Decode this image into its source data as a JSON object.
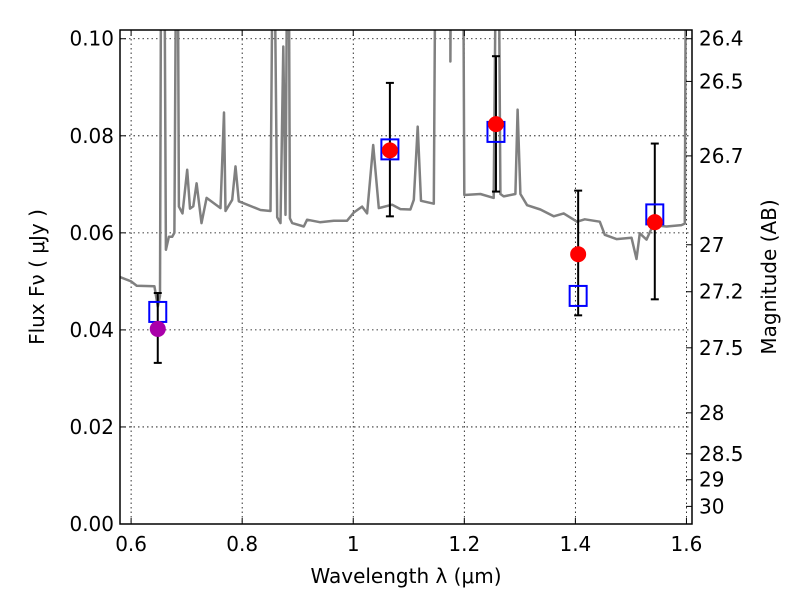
{
  "chart_data": {
    "type": "scatter",
    "title": "",
    "xlabel": "Wavelength  λ (μm)",
    "ylabel": "Flux  Fν  ( μJy )",
    "y2label": "Magnitude (AB)",
    "xlim": [
      0.58,
      1.61
    ],
    "ylim": [
      0.0,
      0.1018
    ],
    "grid": true,
    "x_ticks": [
      0.6,
      0.8,
      1.0,
      1.2,
      1.4,
      1.6
    ],
    "x_tick_labels": [
      "0.6",
      "0.8",
      "1",
      "1.2",
      "1.4",
      "1.6"
    ],
    "y_ticks": [
      0.0,
      0.02,
      0.04,
      0.06,
      0.08,
      0.1
    ],
    "y_tick_labels": [
      "0.00",
      "0.02",
      "0.04",
      "0.06",
      "0.08",
      "0.10"
    ],
    "y2_ticks_mag": [
      26.4,
      26.5,
      26.7,
      27,
      27.2,
      27.5,
      28,
      28.5,
      29,
      30
    ],
    "y2_tick_labels": [
      "26.4",
      "26.5",
      "26.7",
      "27",
      "27.2",
      "27.5",
      "28",
      "28.5",
      "29",
      "30"
    ],
    "y2_zeropoint_mag": 23.9,
    "colors": {
      "spectrum": "#808080",
      "photometry": "#ff0000",
      "first_point": "#aa00aa",
      "model": "#0000ff",
      "errorbar": "#000000"
    },
    "spectrum": [
      [
        0.58,
        0.0509
      ],
      [
        0.6,
        0.05
      ],
      [
        0.61,
        0.0491
      ],
      [
        0.642,
        0.049
      ],
      [
        0.648,
        0.0448
      ],
      [
        0.652,
        0.047
      ],
      [
        0.654,
        0.12
      ],
      [
        0.66,
        0.12
      ],
      [
        0.6626,
        0.0565
      ],
      [
        0.668,
        0.0592
      ],
      [
        0.674,
        0.0592
      ],
      [
        0.678,
        0.06
      ],
      [
        0.681,
        0.12
      ],
      [
        0.684,
        0.12
      ],
      [
        0.686,
        0.0654
      ],
      [
        0.6925,
        0.064
      ],
      [
        0.701,
        0.073
      ],
      [
        0.706,
        0.065
      ],
      [
        0.712,
        0.0655
      ],
      [
        0.718,
        0.0702
      ],
      [
        0.7267,
        0.062
      ],
      [
        0.736,
        0.0672
      ],
      [
        0.761,
        0.0651
      ],
      [
        0.7673,
        0.0848
      ],
      [
        0.77,
        0.0645
      ],
      [
        0.782,
        0.0668
      ],
      [
        0.788,
        0.0737
      ],
      [
        0.794,
        0.0665
      ],
      [
        0.833,
        0.0647
      ],
      [
        0.851,
        0.0645
      ],
      [
        0.855,
        0.12
      ],
      [
        0.858,
        0.12
      ],
      [
        0.863,
        0.0632
      ],
      [
        0.869,
        0.062
      ],
      [
        0.874,
        0.0984
      ],
      [
        0.878,
        0.0637
      ],
      [
        0.881,
        0.12
      ],
      [
        0.884,
        0.12
      ],
      [
        0.886,
        0.063
      ],
      [
        0.89,
        0.062
      ],
      [
        0.911,
        0.0613
      ],
      [
        0.917,
        0.0627
      ],
      [
        0.94,
        0.0622
      ],
      [
        0.965,
        0.0625
      ],
      [
        0.989,
        0.0625
      ],
      [
        1.001,
        0.0642
      ],
      [
        1.016,
        0.0654
      ],
      [
        1.025,
        0.064
      ],
      [
        1.036,
        0.0781
      ],
      [
        1.046,
        0.0651
      ],
      [
        1.07,
        0.0658
      ],
      [
        1.085,
        0.0649
      ],
      [
        1.103,
        0.0648
      ],
      [
        1.109,
        0.0668
      ],
      [
        1.116,
        0.0819
      ],
      [
        1.122,
        0.0666
      ],
      [
        1.145,
        0.066
      ],
      [
        1.148,
        0.12
      ],
      [
        1.175,
        0.12
      ],
      [
        1.175,
        0.0953
      ],
      [
        1.176,
        0.12
      ],
      [
        1.198,
        0.12
      ],
      [
        1.2,
        0.0678
      ],
      [
        1.229,
        0.068
      ],
      [
        1.253,
        0.0672
      ],
      [
        1.257,
        0.12
      ],
      [
        1.262,
        0.12
      ],
      [
        1.265,
        0.068
      ],
      [
        1.271,
        0.0675
      ],
      [
        1.292,
        0.068
      ],
      [
        1.296,
        0.0854
      ],
      [
        1.301,
        0.068
      ],
      [
        1.313,
        0.0657
      ],
      [
        1.337,
        0.0648
      ],
      [
        1.361,
        0.0634
      ],
      [
        1.379,
        0.064
      ],
      [
        1.403,
        0.0623
      ],
      [
        1.417,
        0.0628
      ],
      [
        1.444,
        0.0623
      ],
      [
        1.453,
        0.0596
      ],
      [
        1.474,
        0.0587
      ],
      [
        1.501,
        0.059
      ],
      [
        1.51,
        0.0546
      ],
      [
        1.516,
        0.0599
      ],
      [
        1.528,
        0.0586
      ],
      [
        1.54,
        0.0616
      ],
      [
        1.564,
        0.0613
      ],
      [
        1.591,
        0.0616
      ],
      [
        1.597,
        0.0619
      ],
      [
        1.599,
        0.12
      ],
      [
        1.61,
        0.12
      ]
    ],
    "points": [
      {
        "wavelength": 0.648,
        "flux": 0.0402,
        "err_low": 0.0332,
        "err_high": 0.0476,
        "model_flux": 0.0437,
        "color": "#aa00aa"
      },
      {
        "wavelength": 1.066,
        "flux": 0.077,
        "err_low": 0.0634,
        "err_high": 0.0909,
        "model_flux": 0.0772,
        "color": "#ff0000"
      },
      {
        "wavelength": 1.257,
        "flux": 0.0824,
        "err_low": 0.0685,
        "err_high": 0.0964,
        "model_flux": 0.0808,
        "color": "#ff0000"
      },
      {
        "wavelength": 1.405,
        "flux": 0.0556,
        "err_low": 0.043,
        "err_high": 0.0687,
        "model_flux": 0.047,
        "color": "#ff0000"
      },
      {
        "wavelength": 1.543,
        "flux": 0.0622,
        "err_low": 0.0463,
        "err_high": 0.0784,
        "model_flux": 0.0638,
        "color": "#ff0000"
      }
    ]
  }
}
